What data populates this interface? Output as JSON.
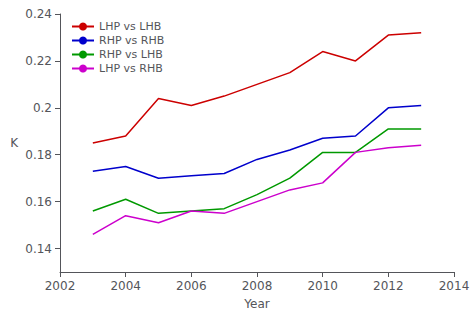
{
  "chart_data": {
    "type": "line",
    "x": [
      2003,
      2004,
      2005,
      2006,
      2007,
      2008,
      2009,
      2010,
      2011,
      2012,
      2013
    ],
    "series": [
      {
        "name": "LHP vs LHB",
        "color": "#cc0000",
        "values": [
          0.185,
          0.188,
          0.204,
          0.201,
          0.205,
          0.21,
          0.215,
          0.224,
          0.22,
          0.231,
          0.232
        ]
      },
      {
        "name": "RHP vs RHB",
        "color": "#0000cc",
        "values": [
          0.173,
          0.175,
          0.17,
          0.171,
          0.172,
          0.178,
          0.182,
          0.187,
          0.188,
          0.2,
          0.201
        ]
      },
      {
        "name": "RHP vs LHB",
        "color": "#009900",
        "values": [
          0.156,
          0.161,
          0.155,
          0.156,
          0.157,
          0.163,
          0.17,
          0.181,
          0.181,
          0.191,
          0.191
        ]
      },
      {
        "name": "LHP vs RHB",
        "color": "#cc00cc",
        "values": [
          0.146,
          0.154,
          0.151,
          0.156,
          0.155,
          0.16,
          0.165,
          0.168,
          0.181,
          0.183,
          0.184
        ]
      }
    ],
    "xlim": [
      2002,
      2014
    ],
    "xticks": [
      2002,
      2004,
      2006,
      2008,
      2010,
      2012,
      2014
    ],
    "ylim": [
      0.13,
      0.24
    ],
    "yticks": [
      0.14,
      0.16,
      0.18,
      0.2,
      0.22,
      0.24
    ],
    "xlabel": "Year",
    "ylabel": "K",
    "legend": "upper left",
    "grid": false
  }
}
